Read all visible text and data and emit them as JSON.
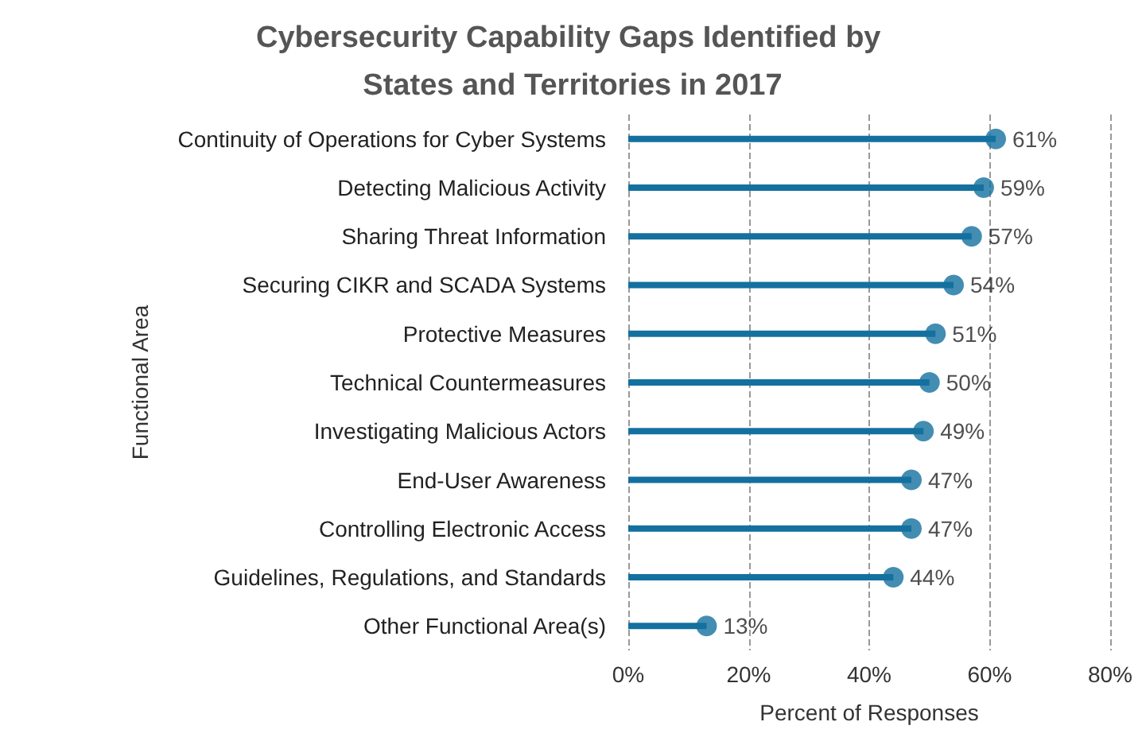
{
  "chart_data": {
    "type": "lollipop",
    "orientation": "horizontal",
    "title": "Cybersecurity Capability Gaps Identified by States and Territories in 2017",
    "xlabel": "Percent of Responses",
    "ylabel": "Functional Area",
    "categories": [
      "Continuity of Operations for Cyber Systems",
      "Detecting Malicious Activity",
      "Sharing Threat Information",
      "Securing CIKR and SCADA Systems",
      "Protective Measures",
      "Technical Countermeasures",
      "Investigating Malicious Actors",
      "End-User Awareness",
      "Controlling Electronic Access",
      "Guidelines, Regulations, and Standards",
      "Other Functional Area(s)"
    ],
    "values": [
      61,
      59,
      57,
      54,
      51,
      50,
      49,
      47,
      47,
      44,
      13
    ],
    "value_labels": [
      "61%",
      "59%",
      "57%",
      "54%",
      "51%",
      "50%",
      "49%",
      "47%",
      "47%",
      "44%",
      "13%"
    ],
    "color": "#14709f",
    "marker": "circle",
    "grid": "x",
    "xlim": [
      0,
      80
    ],
    "xticks": [
      {
        "value": 0,
        "label": "0%"
      },
      {
        "value": 20,
        "label": "20%"
      },
      {
        "value": 40,
        "label": "40%"
      },
      {
        "value": 60,
        "label": "60%"
      },
      {
        "value": 80,
        "label": "80%"
      }
    ]
  }
}
